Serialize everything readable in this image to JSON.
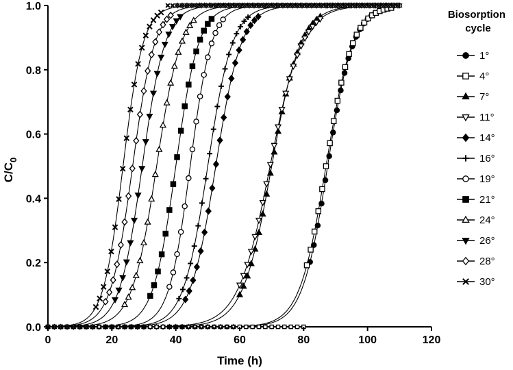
{
  "chart_data": {
    "type": "scatter",
    "title": "",
    "xlabel": "Time (h)",
    "ylabel": "C/C",
    "ylabel_sub": "0",
    "xlim": [
      0,
      120
    ],
    "ylim": [
      0,
      1.0
    ],
    "xticks": [
      "0",
      "20",
      "40",
      "60",
      "80",
      "100",
      "120"
    ],
    "yticks": [
      "0.0",
      "0.2",
      "0.4",
      "0.6",
      "0.8",
      "1.0"
    ],
    "grid": false,
    "legend_title": "Biosorption cycle",
    "legend_placement": "right",
    "fitted_curves": true,
    "series": [
      {
        "name": "1°",
        "marker": "filled-circle",
        "t50": 87.5,
        "k": 0.25,
        "x_start": 82,
        "x_end": 108
      },
      {
        "name": "4°",
        "marker": "open-square",
        "t50": 87.0,
        "k": 0.24,
        "x_start": 81,
        "x_end": 108
      },
      {
        "name": "7°",
        "marker": "filled-triangle-up",
        "t50": 70.0,
        "k": 0.22,
        "x_start": 60,
        "x_end": 86
      },
      {
        "name": "11°",
        "marker": "open-triangle-down",
        "t50": 69.5,
        "k": 0.2,
        "x_start": 60,
        "x_end": 86
      },
      {
        "name": "14°",
        "marker": "filled-diamond",
        "t50": 52.5,
        "k": 0.25,
        "x_start": 43,
        "x_end": 66
      },
      {
        "name": "16°",
        "marker": "plus",
        "t50": 50.0,
        "k": 0.26,
        "x_start": 41,
        "x_end": 63
      },
      {
        "name": "19°",
        "marker": "open-circle",
        "t50": 44.5,
        "k": 0.3,
        "x_start": 38,
        "x_end": 56
      },
      {
        "name": "21°",
        "marker": "filled-square",
        "t50": 40.0,
        "k": 0.28,
        "x_start": 32,
        "x_end": 52
      },
      {
        "name": "24°",
        "marker": "open-triangle-up",
        "t50": 34.0,
        "k": 0.26,
        "x_start": 24,
        "x_end": 46
      },
      {
        "name": "26°",
        "marker": "filled-triangle-down",
        "t50": 29.5,
        "k": 0.28,
        "x_start": 21,
        "x_end": 42
      },
      {
        "name": "28°",
        "marker": "open-diamond",
        "t50": 26.5,
        "k": 0.29,
        "x_start": 18,
        "x_end": 39
      },
      {
        "name": "30°",
        "marker": "x",
        "t50": 23.5,
        "k": 0.32,
        "x_start": 15,
        "x_end": 36
      }
    ]
  }
}
